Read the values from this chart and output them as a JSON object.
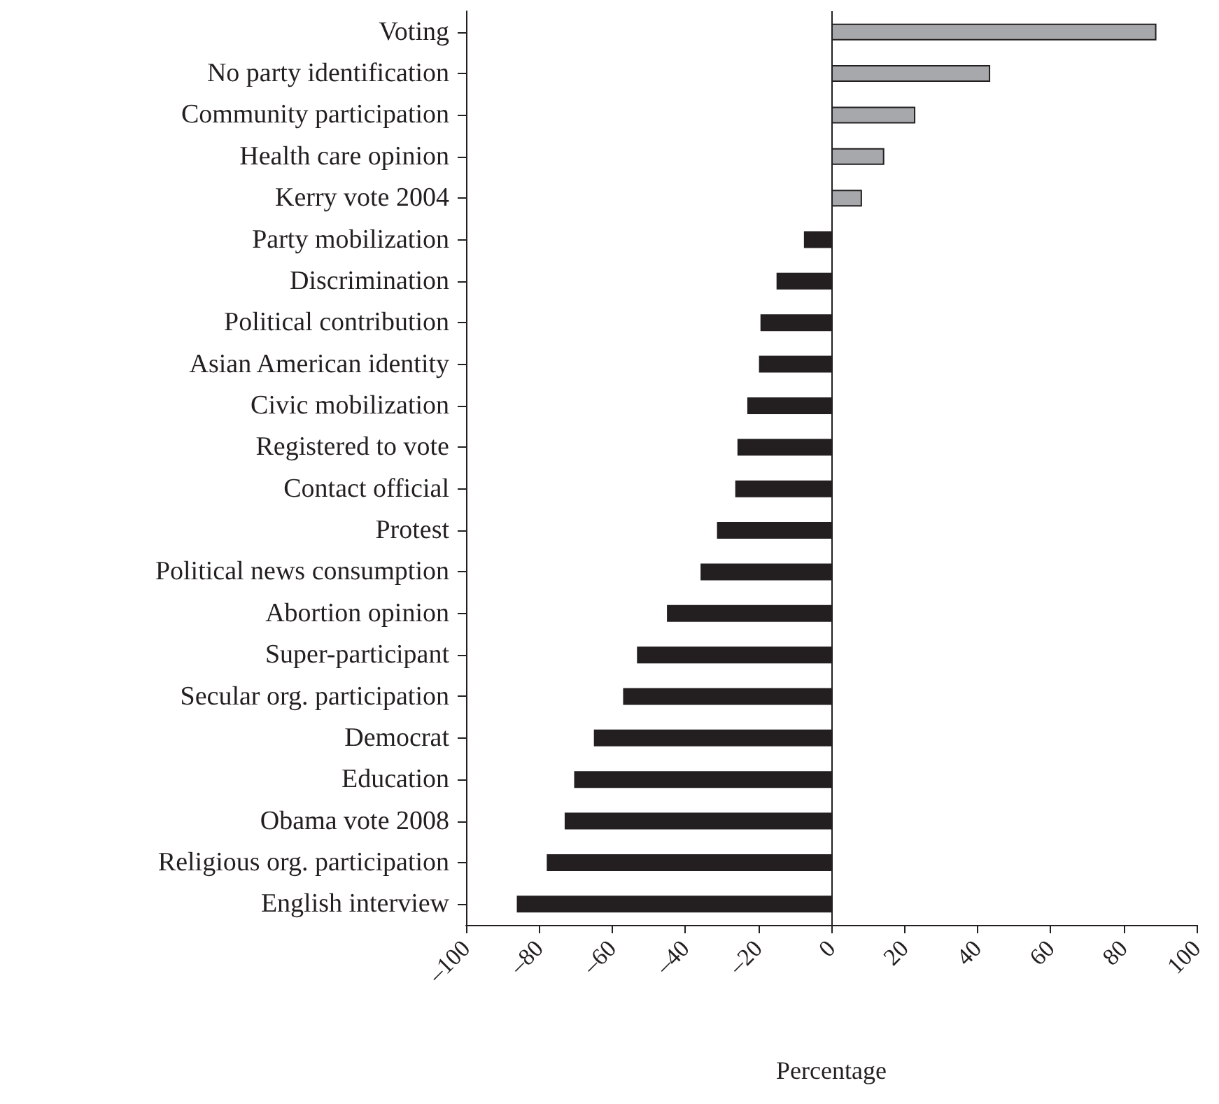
{
  "chart_data": {
    "type": "bar",
    "orientation": "horizontal",
    "xlabel": "Percentage",
    "categories": [
      "Voting",
      "No party identification",
      "Community participation",
      "Health care opinion",
      "Kerry vote 2004",
      "Party mobilization",
      "Discrimination",
      "Political contribution",
      "Asian American identity",
      "Civic mobilization",
      "Registered to vote",
      "Contact official",
      "Protest",
      "Political news consumption",
      "Abortion opinion",
      "Super-participant",
      "Secular org. participation",
      "Democrat",
      "Education",
      "Obama vote 2008",
      "Religious org. participation",
      "English interview"
    ],
    "values": [
      89,
      43.5,
      23,
      14.5,
      8.4,
      -7.5,
      -15,
      -19.4,
      -19.8,
      -23,
      -25.7,
      -26.3,
      -31.3,
      -35.8,
      -45,
      -53.2,
      -57,
      -65,
      -70.4,
      -73,
      -77.9,
      -86.1
    ],
    "colors": [
      "#a7a8ab",
      "#a7a8ab",
      "#a7a8ab",
      "#a7a8ab",
      "#a7a8ab",
      "#231f20",
      "#231f20",
      "#231f20",
      "#231f20",
      "#231f20",
      "#231f20",
      "#231f20",
      "#231f20",
      "#231f20",
      "#231f20",
      "#231f20",
      "#231f20",
      "#231f20",
      "#231f20",
      "#231f20",
      "#231f20",
      "#231f20"
    ],
    "xlim": [
      -100,
      100
    ],
    "xticks": [
      {
        "value": -100,
        "label": "–100"
      },
      {
        "value": -80,
        "label": "–80"
      },
      {
        "value": -60,
        "label": "–60"
      },
      {
        "value": -40,
        "label": "–40"
      },
      {
        "value": -20,
        "label": "–20"
      },
      0,
      20,
      40,
      60,
      80,
      100
    ],
    "ref_lines": [
      {
        "axis": "x",
        "value": 0,
        "color": "#231f20"
      }
    ],
    "grid": false
  }
}
